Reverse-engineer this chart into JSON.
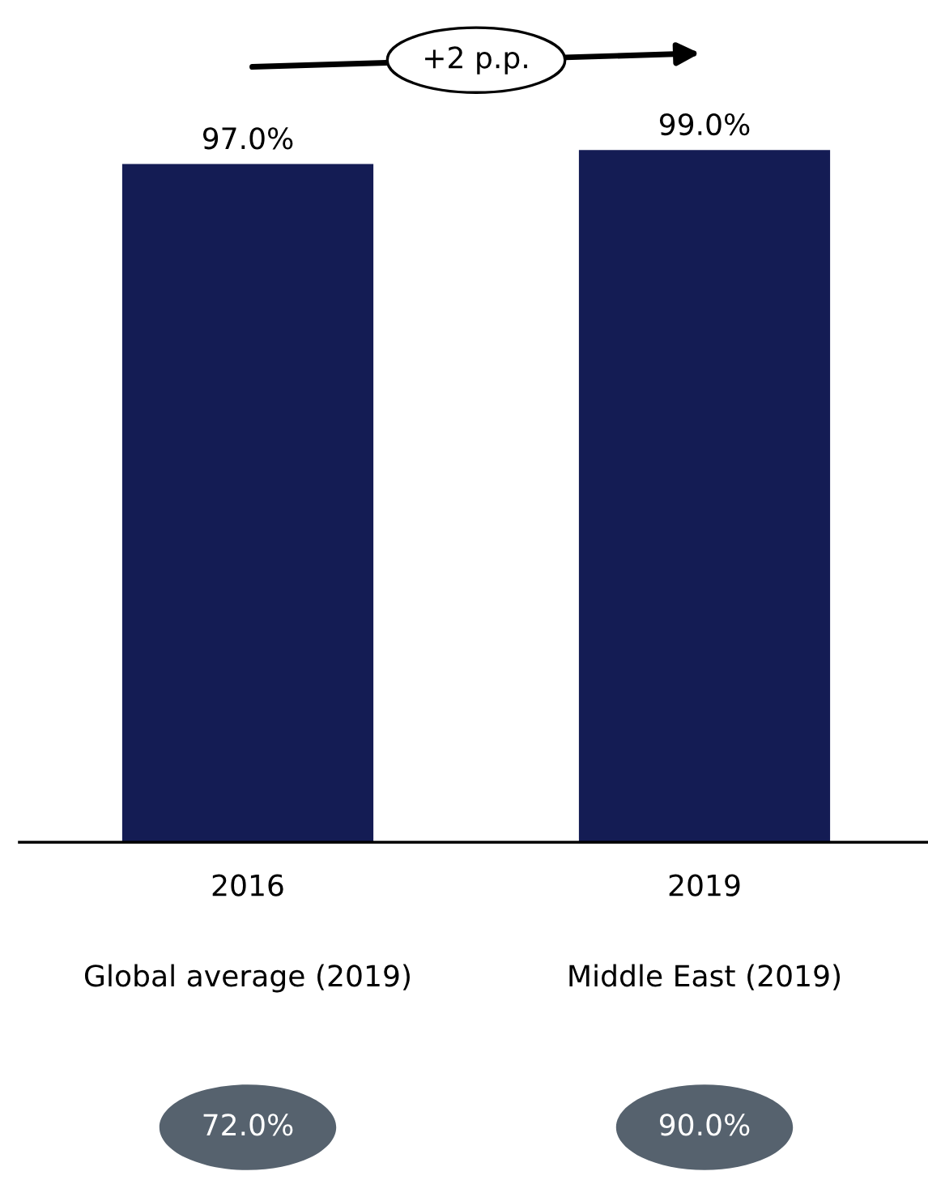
{
  "chart_data": {
    "type": "bar",
    "categories": [
      "2016",
      "2019"
    ],
    "values": [
      97.0,
      99.0
    ],
    "color": "#141c54",
    "data_labels": true,
    "value_labels": [
      "97.0%",
      "99.0%"
    ],
    "grid": false,
    "legend": false,
    "annotations": [
      "+2 p.p.",
      "Global average (2019)",
      "Middle East (2019)",
      "72.0%",
      "90.0%"
    ]
  }
}
